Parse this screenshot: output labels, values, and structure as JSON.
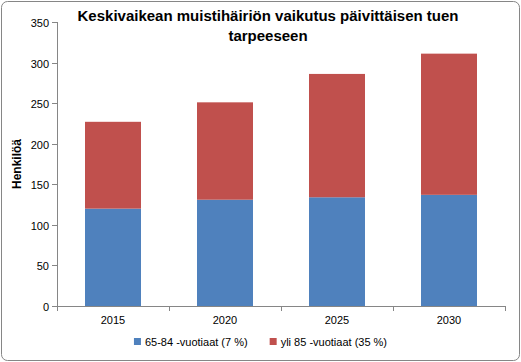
{
  "chart_data": {
    "type": "bar",
    "stacked": true,
    "title": "Keskivaikean muistihäiriön vaikutus päivittäisen tuen tarpeeseen",
    "y_label": "Henkilöä",
    "categories": [
      "2015",
      "2020",
      "2025",
      "2030"
    ],
    "series": [
      {
        "name": "65-84 -vuotiaat (7 %)",
        "color": "#4f81bd",
        "values": [
          120,
          131,
          134,
          137
        ]
      },
      {
        "name": "yli 85 -vuotiaat (35 %)",
        "color": "#c0504d",
        "values": [
          107,
          120,
          152,
          174
        ]
      }
    ],
    "ylim": [
      0,
      350
    ],
    "yticks": [
      0,
      50,
      100,
      150,
      200,
      250,
      300,
      350
    ],
    "grid": false,
    "legend": "bottom"
  }
}
